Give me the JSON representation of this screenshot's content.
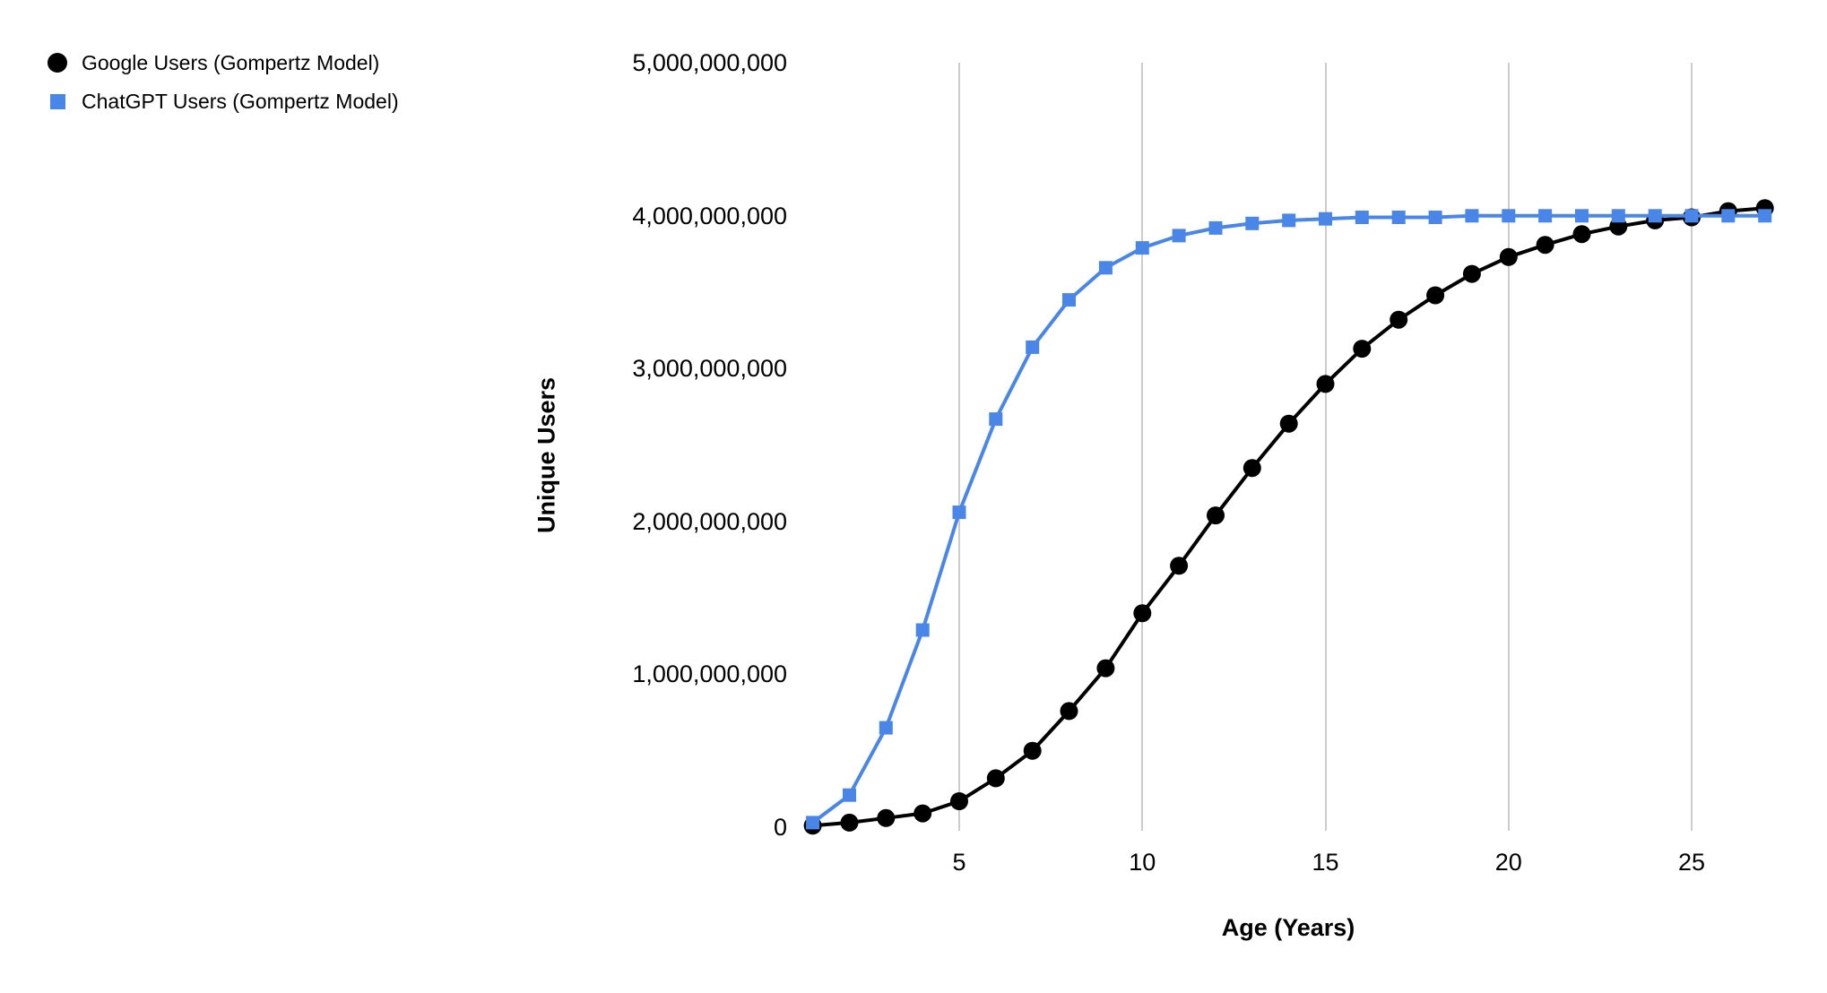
{
  "page": {
    "background_color": "#ffffff"
  },
  "chart_data": {
    "type": "line",
    "title": "",
    "xlabel": "Age (Years)",
    "ylabel": "Unique Users",
    "legend_position": "top-left",
    "grid": "vertical-only",
    "x": [
      1,
      2,
      3,
      4,
      5,
      6,
      7,
      8,
      9,
      10,
      11,
      12,
      13,
      14,
      15,
      16,
      17,
      18,
      19,
      20,
      21,
      22,
      23,
      24,
      25,
      26,
      27
    ],
    "series": [
      {
        "name": "Google Users (Gompertz Model)",
        "color": "#000000",
        "marker": "circle",
        "values": [
          10000000,
          30000000,
          60000000,
          90000000,
          170000000,
          320000000,
          500000000,
          760000000,
          1040000000,
          1400000000,
          1710000000,
          2040000000,
          2350000000,
          2640000000,
          2900000000,
          3130000000,
          3320000000,
          3480000000,
          3620000000,
          3730000000,
          3810000000,
          3880000000,
          3930000000,
          3970000000,
          3990000000,
          4030000000,
          4050000000
        ]
      },
      {
        "name": "ChatGPT Users (Gompertz Model)",
        "color": "#4a86e8",
        "marker": "square",
        "values": [
          30000000,
          210000000,
          650000000,
          1290000000,
          2060000000,
          2670000000,
          3140000000,
          3450000000,
          3660000000,
          3790000000,
          3870000000,
          3920000000,
          3950000000,
          3970000000,
          3980000000,
          3990000000,
          3990000000,
          3990000000,
          4000000000,
          4000000000,
          4000000000,
          4000000000,
          4000000000,
          4000000000,
          4000000000,
          4000000000,
          4000000000
        ]
      }
    ],
    "x_axis": {
      "tick_values": [
        5,
        10,
        15,
        20,
        25
      ],
      "tick_labels": [
        "5",
        "10",
        "15",
        "20",
        "25"
      ],
      "range": [
        1,
        27
      ],
      "gridlines": true
    },
    "y_axis": {
      "ticks": [
        {
          "label": "0",
          "value": 0
        },
        {
          "label": "1,000,000,000",
          "value": 1000000000
        },
        {
          "label": "2,000,000,000",
          "value": 2000000000
        },
        {
          "label": "3,000,000,000",
          "value": 3000000000
        },
        {
          "label": "4,000,000,000",
          "value": 4000000000
        },
        {
          "label": "5,000,000,000",
          "value": 5000000000
        }
      ],
      "range": [
        0,
        5000000000
      ],
      "gridlines": false
    },
    "style_colors": {
      "gridline": "#cccccc",
      "text": "#000000",
      "background": "#ffffff"
    }
  }
}
